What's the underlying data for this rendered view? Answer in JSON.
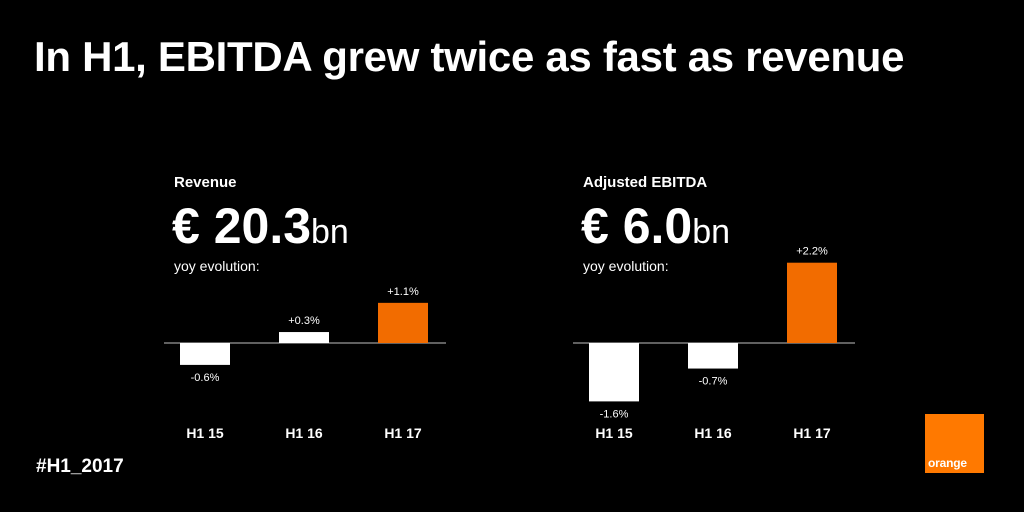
{
  "headline": "In H1, EBITDA grew twice as fast as revenue",
  "hashtag": "#H1_2017",
  "logo_text": "orange",
  "colors": {
    "accent": "#f26c00",
    "neutral": "#ffffff",
    "background": "#000000",
    "logo": "#ff7900"
  },
  "panels": [
    {
      "label": "Revenue",
      "value": "€ 20.3",
      "unit": "bn",
      "sub": "yoy evolution:"
    },
    {
      "label": "Adjusted EBITDA",
      "value": "€ 6.0",
      "unit": "bn",
      "sub": "yoy evolution:"
    }
  ],
  "chart_data": [
    {
      "type": "bar",
      "categories": [
        "H1 15",
        "H1 16",
        "H1 17"
      ],
      "values": [
        -0.6,
        0.3,
        1.1
      ],
      "labels": [
        "-0.6%",
        "+0.3%",
        "+1.1%"
      ],
      "highlight_index": 2,
      "title": "Revenue",
      "ylabel": "",
      "xlabel": ""
    },
    {
      "type": "bar",
      "categories": [
        "H1 15",
        "H1 16",
        "H1 17"
      ],
      "values": [
        -1.6,
        -0.7,
        2.2
      ],
      "labels": [
        "-1.6%",
        "-0.7%",
        "+2.2%"
      ],
      "highlight_index": 2,
      "title": "Adjusted EBITDA",
      "ylabel": "",
      "xlabel": ""
    }
  ]
}
